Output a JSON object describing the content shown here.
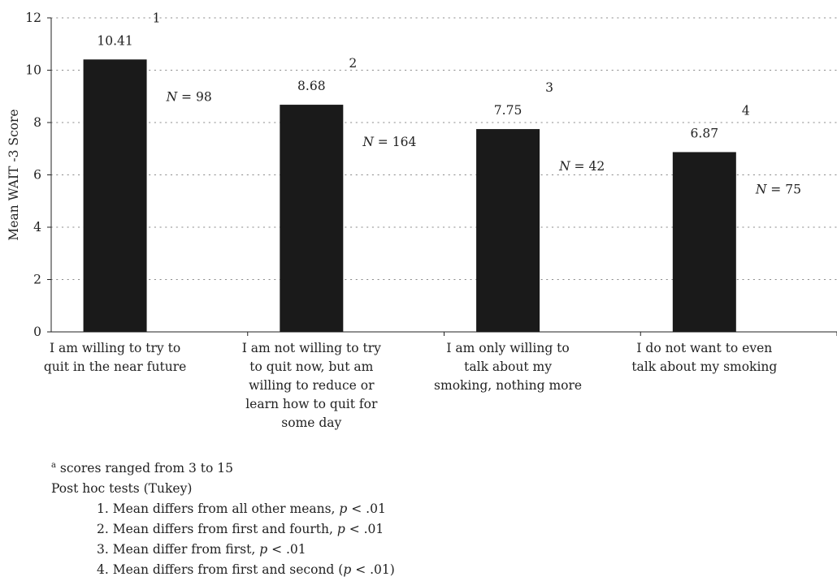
{
  "chart_data": {
    "type": "bar",
    "ylabel": "Mean WAIT -3 Score",
    "ylim": [
      0,
      12
    ],
    "yticks": [
      0,
      2,
      4,
      6,
      8,
      10,
      12
    ],
    "grid": "horizontal-dotted",
    "bar_color": "#1a1a1a",
    "categories": [
      [
        "I am willing to try to",
        "quit in the near future"
      ],
      [
        "I am not willing to try",
        "to quit now, but am",
        "willing to reduce or",
        "learn how to quit for",
        "some day"
      ],
      [
        "I am only willing to",
        "talk about my",
        "smoking, nothing more"
      ],
      [
        "I do not want to even",
        "talk about my smoking"
      ]
    ],
    "values": [
      10.41,
      8.68,
      7.75,
      6.87
    ],
    "value_labels": [
      "10.41",
      "8.68",
      "7.75",
      "6.87"
    ],
    "group_markers": [
      "1",
      "2",
      "3",
      "4"
    ],
    "n_labels": [
      "98",
      "164",
      "42",
      "75"
    ]
  },
  "notes": {
    "footnote_marker": "a",
    "footnote": "scores ranged from 3 to 15",
    "posthoc_title": "Post hoc tests (Tukey)",
    "items": [
      {
        "text": "1. Mean differs from all other means, ",
        "p": "p",
        "tail": " < .01"
      },
      {
        "text": "2. Mean differs from first and fourth, ",
        "p": "p",
        "tail": " < .01"
      },
      {
        "text": "3. Mean differ from first, ",
        "p": "p",
        "tail": " < .01"
      },
      {
        "text": "4. Mean differs from first and second (",
        "p": "p",
        "tail": " < .01)"
      }
    ]
  }
}
